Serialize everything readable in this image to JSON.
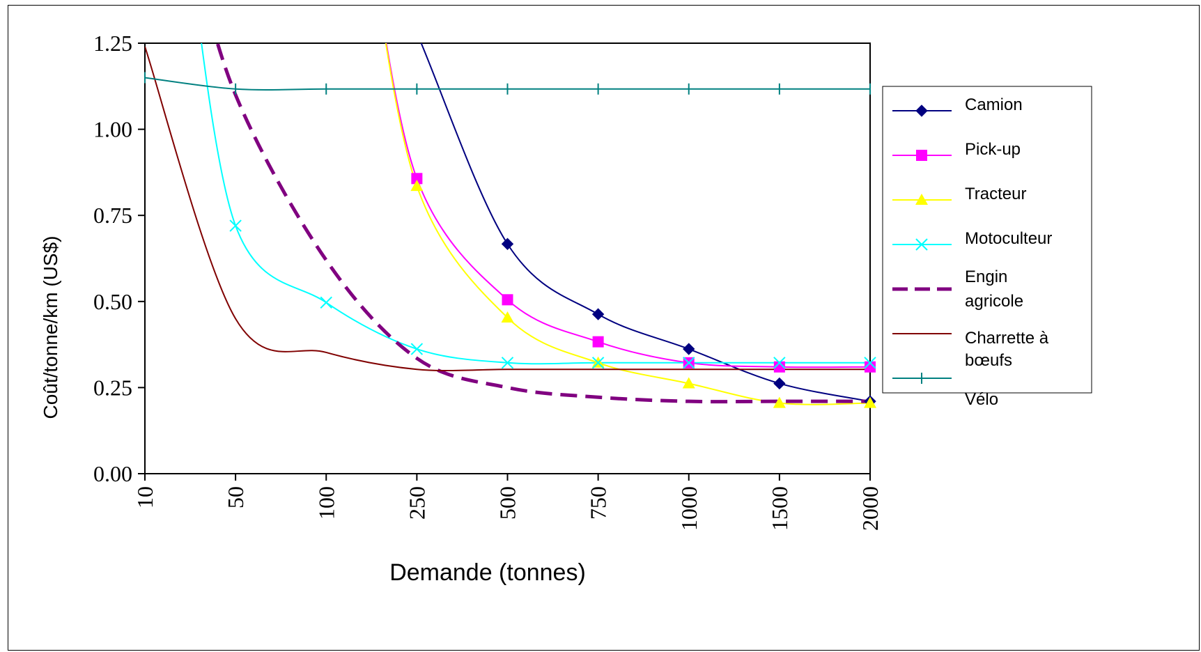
{
  "chart_data": {
    "type": "line",
    "title": "",
    "xlabel": "Demande (tonnes)",
    "ylabel": "Coût/tonne/km (US$)",
    "categories": [
      "10",
      "50",
      "100",
      "250",
      "500",
      "750",
      "1000",
      "1500",
      "2000"
    ],
    "y_ticks": [
      "0.00",
      "0.25",
      "0.50",
      "0.75",
      "1.00",
      "1.25"
    ],
    "ylim": [
      0,
      1.25
    ],
    "grid": false,
    "legend_position": "right",
    "series": [
      {
        "name": "Camion",
        "color": "#000080",
        "marker": "diamond",
        "dash": "solid",
        "width": 2,
        "values": [
          null,
          null,
          null,
          1.28,
          0.667,
          0.463,
          0.362,
          0.262,
          0.21
        ]
      },
      {
        "name": "Pick-up",
        "color": "#FF00FF",
        "marker": "square",
        "dash": "solid",
        "width": 2,
        "values": [
          null,
          null,
          null,
          0.857,
          0.505,
          0.383,
          0.322,
          0.31,
          0.31
        ]
      },
      {
        "name": "Tracteur",
        "color": "#FFFF00",
        "marker": "triangle",
        "dash": "solid",
        "width": 2,
        "values": [
          null,
          null,
          null,
          0.835,
          0.453,
          0.322,
          0.262,
          0.205,
          0.205
        ]
      },
      {
        "name": "Motoculteur",
        "color": "#00FFFF",
        "marker": "x",
        "dash": "solid",
        "width": 2,
        "values": [
          null,
          0.72,
          0.497,
          0.362,
          0.322,
          0.322,
          0.322,
          0.322,
          0.322
        ]
      },
      {
        "name": "Engin agricole",
        "color": "#800080",
        "marker": "none",
        "dash": "dashed",
        "width": 5,
        "values": [
          null,
          1.1,
          0.62,
          0.335,
          0.25,
          0.222,
          0.21,
          0.21,
          0.21
        ]
      },
      {
        "name": "Charrette à bœufs",
        "color": "#800000",
        "marker": "none",
        "dash": "solid",
        "width": 2,
        "values": [
          1.24,
          0.45,
          0.352,
          0.303,
          0.303,
          0.303,
          0.303,
          0.303,
          0.303
        ]
      },
      {
        "name": "Vélo",
        "color": "#008080",
        "marker": "plus",
        "dash": "solid",
        "width": 2,
        "values": [
          1.15,
          1.117,
          1.117,
          1.117,
          1.117,
          1.117,
          1.117,
          1.117,
          1.117
        ]
      }
    ]
  }
}
